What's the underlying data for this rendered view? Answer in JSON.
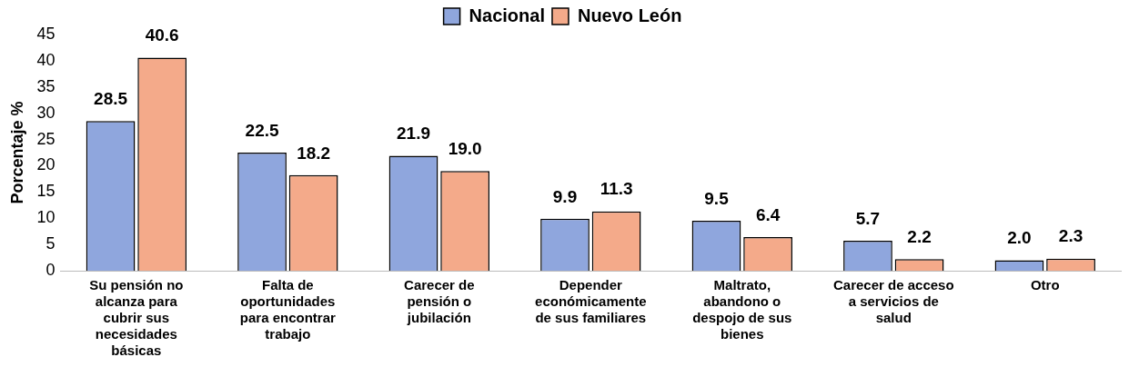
{
  "chart_data": {
    "type": "bar",
    "categories": [
      "Su pensión no alcanza para cubrir sus necesidades básicas",
      "Falta de oportunidades para encontrar trabajo",
      "Carecer de pensión o jubilación",
      "Depender económicamente de sus familiares",
      "Maltrato, abandono o despojo de sus bienes",
      "Carecer de acceso a servicios de salud",
      "Otro"
    ],
    "series": [
      {
        "name": "Nacional",
        "color": "#8fa6dd",
        "values": [
          28.5,
          22.5,
          21.9,
          9.9,
          9.5,
          5.7,
          2.0
        ],
        "value_labels": [
          "28.5",
          "22.5",
          "21.9",
          "9.9",
          "9.5",
          "5.7",
          "2.0"
        ]
      },
      {
        "name": "Nuevo León",
        "color": "#f4aa8a",
        "values": [
          40.6,
          18.2,
          19.0,
          11.3,
          6.4,
          2.2,
          2.3
        ],
        "value_labels": [
          "40.6",
          "18.2",
          "19.0",
          "11.3",
          "6.4",
          "2.2",
          "2.3"
        ]
      }
    ],
    "ylabel": "Porcentaje %",
    "ylim": [
      0,
      45
    ],
    "yticks": [
      0,
      5,
      10,
      15,
      20,
      25,
      30,
      35,
      40,
      45
    ],
    "grid": false,
    "legend": "top"
  }
}
